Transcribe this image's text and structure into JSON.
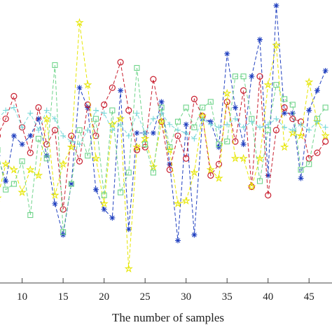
{
  "chart_data": {
    "type": "line",
    "xlabel": "The number of samples",
    "ylabel": "",
    "title": "",
    "xlim": [
      7.3,
      47.8
    ],
    "ylim": [
      0,
      100
    ],
    "xticks": [
      10,
      15,
      20,
      25,
      30,
      35,
      40,
      45
    ],
    "grid": false,
    "series": [
      {
        "color": "#1f3fbf",
        "marker": "asterisk",
        "x": [
          7,
          8,
          9,
          10,
          11,
          12,
          13,
          14,
          15,
          16,
          17,
          18,
          19,
          20,
          21,
          22,
          23,
          24,
          25,
          26,
          27,
          28,
          29,
          30,
          31,
          32,
          33,
          34,
          35,
          36,
          37,
          38,
          39,
          40,
          41,
          42,
          43,
          44,
          45,
          46,
          47
        ],
        "y": [
          45,
          36,
          52,
          49,
          52,
          58,
          45,
          28,
          17,
          35,
          69,
          62,
          33,
          26,
          23,
          68,
          19,
          53,
          53,
          53,
          64,
          42,
          15,
          56,
          17,
          58,
          57,
          48,
          81,
          62,
          49,
          73,
          86,
          38,
          98,
          60,
          60,
          37,
          61,
          68,
          75
        ]
      },
      {
        "color": "#c81e2e",
        "marker": "circle",
        "x": [
          7,
          8,
          9,
          10,
          11,
          12,
          13,
          14,
          15,
          16,
          17,
          18,
          19,
          20,
          21,
          22,
          23,
          24,
          25,
          26,
          27,
          28,
          29,
          30,
          31,
          32,
          33,
          34,
          35,
          36,
          37,
          38,
          39,
          40,
          41,
          42,
          43,
          44,
          45,
          46,
          47
        ],
        "y": [
          52,
          58,
          66,
          55,
          46,
          62,
          49,
          54,
          26,
          52,
          43,
          63,
          52,
          63,
          69,
          78,
          61,
          47,
          48,
          72,
          57,
          40,
          52,
          44,
          65,
          59,
          38,
          42,
          64,
          50,
          68,
          34,
          73,
          31,
          54,
          62,
          58,
          57,
          44,
          46,
          50
        ]
      },
      {
        "color": "#e6e600",
        "marker": "star",
        "x": [
          7,
          8,
          9,
          10,
          11,
          12,
          13,
          14,
          15,
          16,
          17,
          18,
          19,
          20,
          21,
          22,
          23,
          24,
          25,
          26,
          27,
          28,
          29,
          30,
          31,
          32,
          33,
          34,
          35,
          36,
          37,
          38,
          39,
          40,
          41,
          42,
          43,
          44,
          45,
          46,
          47
        ],
        "y": [
          30,
          42,
          40,
          32,
          40,
          38,
          58,
          31,
          42,
          48,
          92,
          70,
          44,
          28,
          56,
          58,
          5,
          48,
          51,
          41,
          57,
          47,
          28,
          29,
          39,
          59,
          40,
          37,
          67,
          44,
          44,
          34,
          44,
          70,
          84,
          48,
          53,
          52,
          71,
          57,
          52
        ]
      },
      {
        "color": "#6fd48a",
        "marker": "square",
        "x": [
          7,
          8,
          9,
          10,
          11,
          12,
          13,
          14,
          15,
          16,
          17,
          18,
          19,
          20,
          21,
          22,
          23,
          24,
          25,
          26,
          27,
          28,
          29,
          30,
          31,
          32,
          33,
          34,
          35,
          36,
          37,
          38,
          39,
          40,
          41,
          42,
          43,
          44,
          45,
          46,
          47
        ],
        "y": [
          47,
          33,
          35,
          43,
          24,
          51,
          44,
          77,
          18,
          35,
          54,
          45,
          58,
          31,
          61,
          32,
          39,
          76,
          49,
          39,
          62,
          48,
          57,
          62,
          55,
          62,
          64,
          49,
          50,
          73,
          73,
          58,
          36,
          54,
          70,
          65,
          63,
          40,
          42,
          58,
          62
        ]
      },
      {
        "color": "#79d8d8",
        "marker": "plus",
        "x": [
          7,
          8,
          9,
          10,
          11,
          12,
          13,
          14,
          15,
          16,
          17,
          18,
          19,
          20,
          21,
          22,
          23,
          24,
          25,
          26,
          27,
          28,
          29,
          30,
          31,
          32,
          33,
          34,
          35,
          36,
          37,
          38,
          39,
          40,
          41,
          42,
          43,
          44,
          45,
          46,
          47
        ],
        "y": [
          58,
          61,
          62,
          55,
          60,
          54,
          61,
          58,
          52,
          50,
          49,
          54,
          61,
          60,
          54,
          56,
          52,
          60,
          53,
          58,
          60,
          56,
          54,
          53,
          51,
          58,
          56,
          55,
          56,
          58,
          55,
          57,
          55,
          56,
          58,
          55,
          54,
          56,
          54,
          57,
          55
        ]
      }
    ]
  }
}
